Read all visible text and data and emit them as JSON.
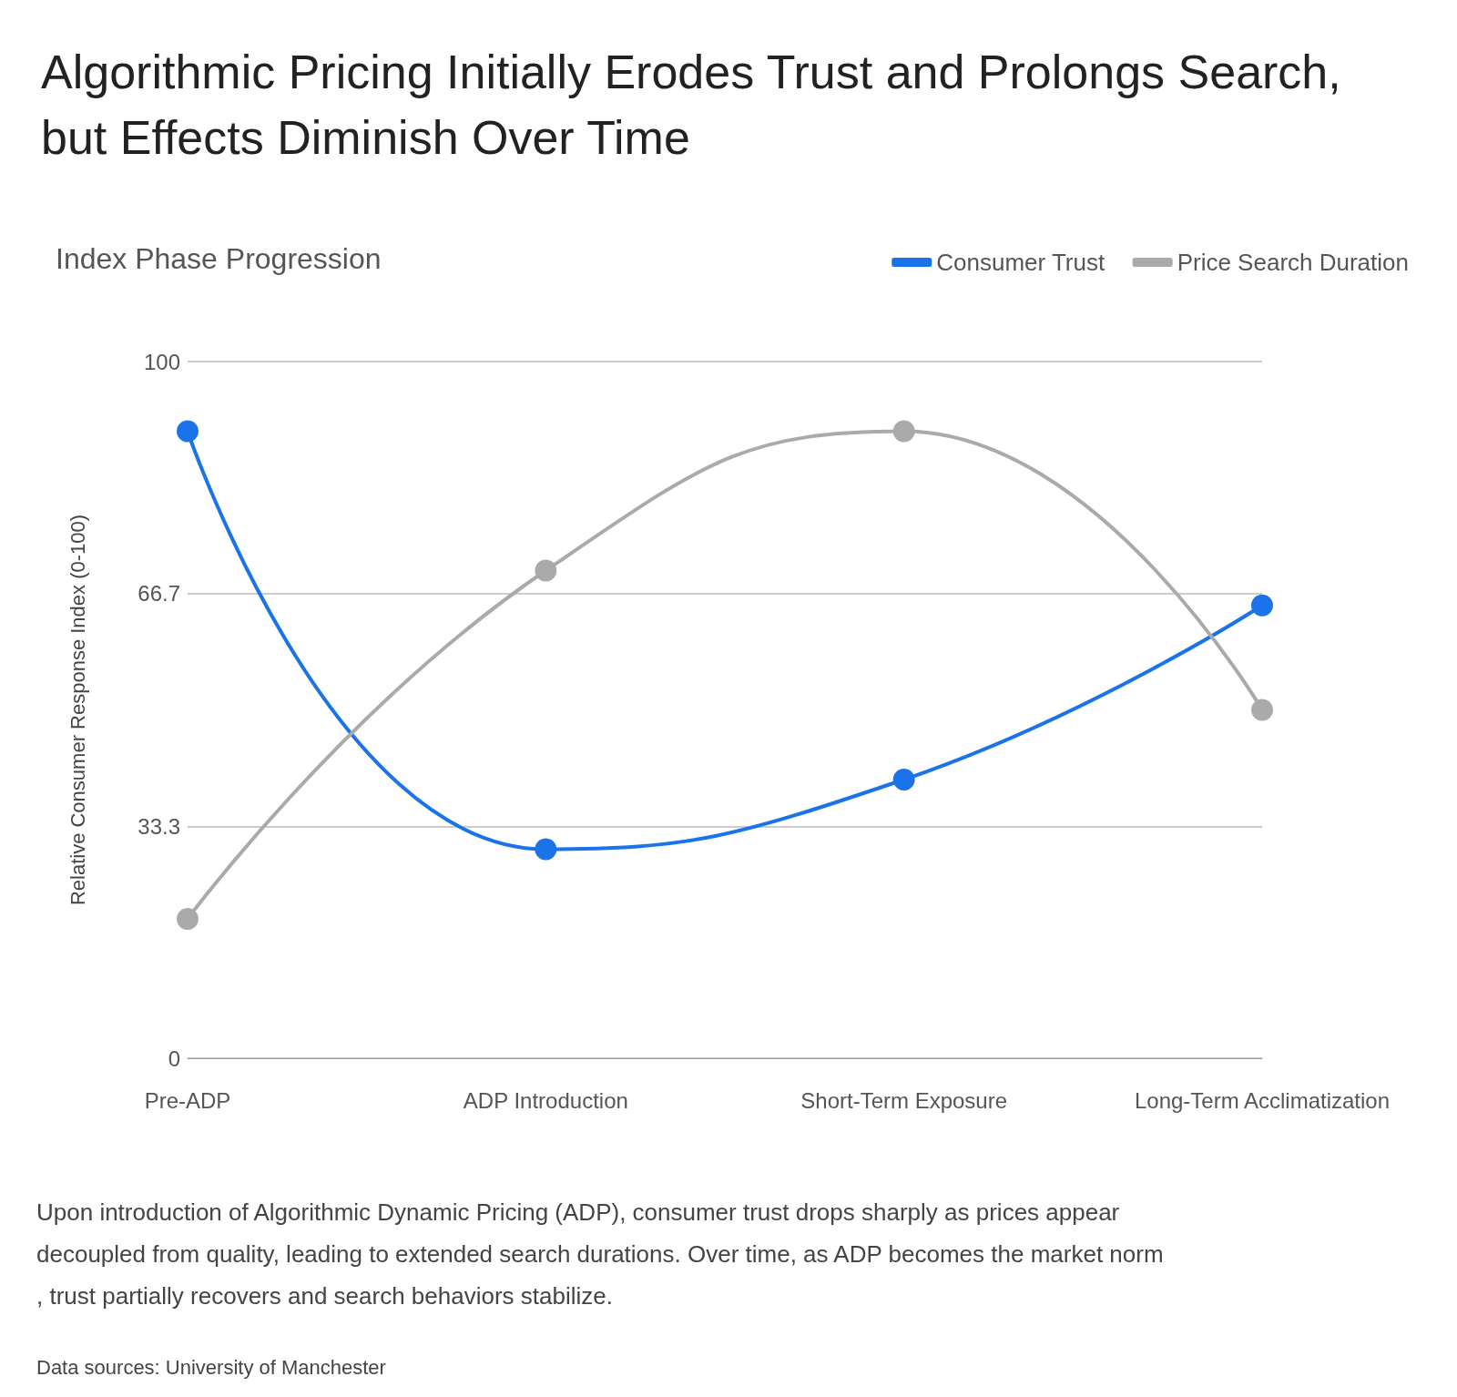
{
  "chart_data": {
    "type": "line",
    "title": "Algorithmic Pricing Initially Erodes Trust and Prolongs Search, but Effects Diminish Over Time",
    "subtitle": "Index Phase Progression",
    "ylabel": "Relative Consumer Response Index (0-100)",
    "categories": [
      "Pre-ADP",
      "ADP Introduction",
      "Short-Term Exposure",
      "Long-Term Acclimatization"
    ],
    "series": [
      {
        "name": "Consumer Trust",
        "color": "#1a73e8",
        "values": [
          90,
          30,
          40,
          65
        ]
      },
      {
        "name": "Price Search Duration",
        "color": "#aaaaaa",
        "values": [
          20,
          70,
          90,
          50
        ]
      }
    ],
    "ylim": [
      0,
      100
    ],
    "yticks": [
      0,
      33.3,
      66.7,
      100
    ],
    "grid": "y",
    "legend": "top right",
    "marker": "circle",
    "line_style": "solid",
    "annotations": [
      "Upon introduction of Algorithmic Dynamic Pricing (ADP), consumer trust drops sharply as prices appear decoupled from quality, leading to extended search durations. Over time, as ADP becomes the market norm, trust partially recovers and search behaviors stabilize.",
      "Data sources: University of Manchester"
    ]
  }
}
